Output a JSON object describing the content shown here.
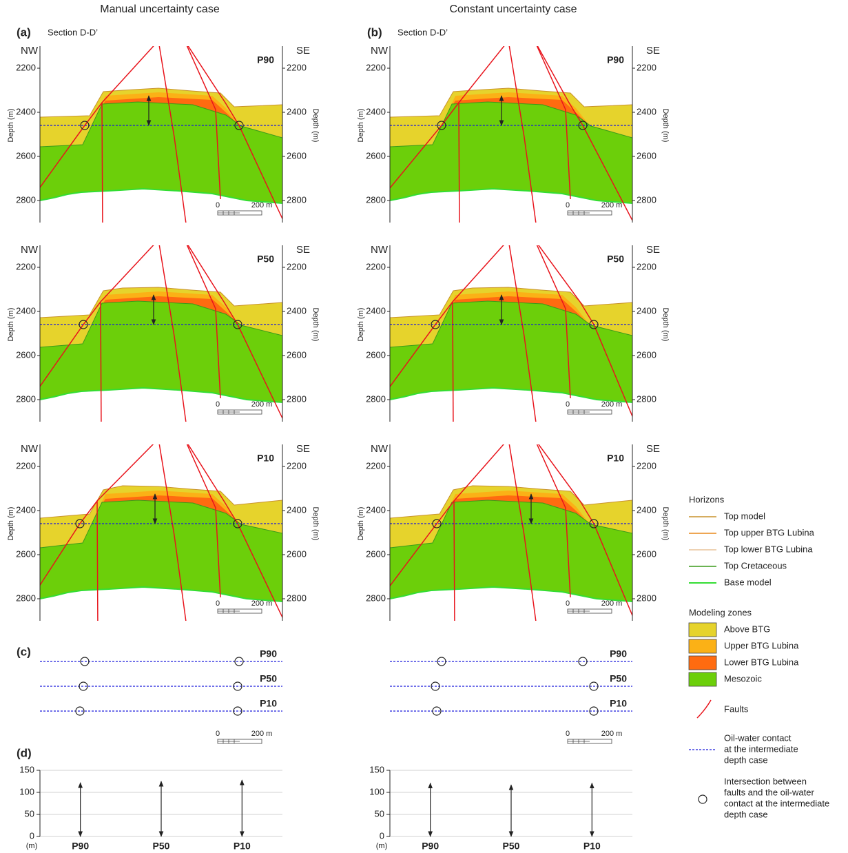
{
  "columns": [
    {
      "title": "Manual uncertainty case",
      "label": "(a)",
      "section": "Section D-D’"
    },
    {
      "title": "Constant uncertainty case",
      "label": "(b)",
      "section": "Section D-D’"
    }
  ],
  "section_axes": {
    "left": "NW",
    "right": "SE",
    "y_label": "Depth (m)",
    "ylim": [
      2100,
      2900
    ],
    "yticks": [
      2200,
      2400,
      2600,
      2800
    ],
    "scale_bar": {
      "start": "0",
      "end": "200 m"
    }
  },
  "cases": [
    "P90",
    "P50",
    "P10"
  ],
  "panel_c": {
    "label": "(c)"
  },
  "panel_d": {
    "label": "(d)"
  },
  "chart_data": [
    {
      "type": "arrow",
      "categories": [
        "P90",
        "P50",
        "P10"
      ],
      "values": [
        122,
        125,
        128
      ],
      "ylim": [
        0,
        150
      ],
      "yticks": [
        0,
        50,
        100,
        150
      ],
      "y_label": "(m)"
    },
    {
      "type": "arrow",
      "categories": [
        "P90",
        "P50",
        "P10"
      ],
      "values": [
        121,
        117,
        121
      ],
      "ylim": [
        0,
        150
      ],
      "yticks": [
        0,
        50,
        100,
        150
      ],
      "y_label": "(m)"
    }
  ],
  "legend": {
    "horizons_title": "Horizons",
    "horizons": [
      {
        "name": "Top model",
        "color": "#c8922b"
      },
      {
        "name": "Top upper BTG Lubina",
        "color": "#e8881a"
      },
      {
        "name": "Top lower BTG Lubina",
        "color": "#e8c39a"
      },
      {
        "name": "Top Cretaceous",
        "color": "#3a9a1a"
      },
      {
        "name": "Base model",
        "color": "#33dd33"
      }
    ],
    "zones_title": "Modeling zones",
    "zones": [
      {
        "name": "Above BTG",
        "color": "#e6d32c"
      },
      {
        "name": "Upper BTG Lubina",
        "color": "#fbb116"
      },
      {
        "name": "Lower BTG Lubina",
        "color": "#ff6b10"
      },
      {
        "name": "Mesozoic",
        "color": "#6ccf0a"
      }
    ],
    "faults": {
      "name": "Faults",
      "color": "#e8141c"
    },
    "owc": {
      "lines": [
        "Oil-water contact",
        "at the intermediate",
        "depth case"
      ],
      "color": "#1a1adc"
    },
    "intersection": {
      "lines": [
        "Intersection between",
        "faults and the oil-water",
        "contact at the intermediate",
        "depth case"
      ]
    }
  }
}
